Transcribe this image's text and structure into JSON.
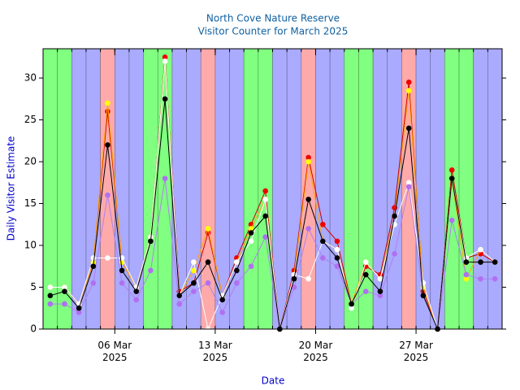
{
  "chart_data": {
    "type": "line",
    "title": "North Cove Nature Reserve",
    "subtitle": "Visitor Counter for March 2025",
    "title_color": "#1060a0",
    "xlabel": "Date",
    "ylabel": "Daily Visitor Estimate",
    "label_color": "#0000cc",
    "x": [
      "2025-03-01",
      "2025-03-02",
      "2025-03-03",
      "2025-03-04",
      "2025-03-05",
      "2025-03-06",
      "2025-03-07",
      "2025-03-08",
      "2025-03-09",
      "2025-03-10",
      "2025-03-11",
      "2025-03-12",
      "2025-03-13",
      "2025-03-14",
      "2025-03-15",
      "2025-03-16",
      "2025-03-17",
      "2025-03-18",
      "2025-03-19",
      "2025-03-20",
      "2025-03-21",
      "2025-03-22",
      "2025-03-23",
      "2025-03-24",
      "2025-03-25",
      "2025-03-26",
      "2025-03-27",
      "2025-03-28",
      "2025-03-29",
      "2025-03-30",
      "2025-03-31",
      "2025-04-01"
    ],
    "day_colors": [
      "#80ff80",
      "#80ff80",
      "#aaaaff",
      "#aaaaff",
      "#ffaaaa",
      "#aaaaff",
      "#aaaaff",
      "#80ff80",
      "#80ff80",
      "#aaaaff",
      "#aaaaff",
      "#ffaaaa",
      "#aaaaff",
      "#aaaaff",
      "#80ff80",
      "#80ff80",
      "#aaaaff",
      "#aaaaff",
      "#ffaaaa",
      "#aaaaff",
      "#aaaaff",
      "#80ff80",
      "#80ff80",
      "#aaaaff",
      "#aaaaff",
      "#ffaaaa",
      "#aaaaff",
      "#aaaaff",
      "#80ff80",
      "#80ff80",
      "#aaaaff",
      "#aaaaff"
    ],
    "xlim": [
      "2025-03-01",
      "2025-04-02"
    ],
    "xticks": [
      {
        "value": "2025-03-06",
        "label": "06 Mar\n2025"
      },
      {
        "value": "2025-03-13",
        "label": "13 Mar\n2025"
      },
      {
        "value": "2025-03-20",
        "label": "20 Mar\n2025"
      },
      {
        "value": "2025-03-27",
        "label": "27 Mar\n2025"
      }
    ],
    "ylim": [
      0,
      33.5
    ],
    "yticks": [
      0,
      5,
      10,
      15,
      20,
      25,
      30
    ],
    "series": [
      {
        "color": "#cc0000",
        "marker_color": "#ee0000",
        "values": [
          5,
          5,
          3,
          8,
          26,
          8,
          5,
          11,
          32.5,
          4.5,
          5.5,
          11.5,
          4,
          8.5,
          12.5,
          16.5,
          0,
          7,
          20.5,
          12.5,
          10.5,
          3,
          7.5,
          6.5,
          14.5,
          29.5,
          4.5,
          0,
          19,
          8.5,
          9,
          8
        ]
      },
      {
        "color": "#ffa500",
        "marker_color": "#ffff00",
        "values": [
          5,
          5,
          3,
          8,
          27,
          8,
          5,
          11,
          32,
          4,
          7,
          12,
          4,
          8,
          12,
          15.5,
          0,
          6.5,
          20,
          10.5,
          9.5,
          3,
          8,
          6,
          13.5,
          28.5,
          5,
          0,
          18,
          6,
          9.5,
          8
        ]
      },
      {
        "color": "#ffffff",
        "marker_color": "#ffffff",
        "values": [
          5,
          5,
          3,
          8.5,
          8.5,
          8.5,
          5,
          11,
          32,
          4,
          8,
          0,
          4,
          8,
          10.5,
          15.5,
          0,
          6.5,
          6,
          10.5,
          9.5,
          2.5,
          8,
          6,
          12.5,
          17.5,
          5.5,
          0,
          18,
          8.5,
          9.5,
          8
        ]
      },
      {
        "color": "#b080f0",
        "marker_color": "#b070f0",
        "values": [
          3,
          3,
          2,
          5.5,
          16,
          5.5,
          3.5,
          7,
          18,
          3,
          4.5,
          5.5,
          2,
          5.5,
          7.5,
          11,
          0,
          5,
          12,
          8.5,
          7.5,
          3,
          4.5,
          4,
          9,
          17,
          4,
          0,
          13,
          6.5,
          6,
          6
        ]
      },
      {
        "color": "#000000",
        "marker_color": "#000000",
        "values": [
          4,
          4.5,
          2.5,
          7.5,
          22,
          7,
          4.5,
          10.5,
          27.5,
          4,
          5.5,
          8,
          3.5,
          7,
          11.5,
          13.5,
          0,
          6,
          15.5,
          10.5,
          8.5,
          3,
          6.5,
          4.5,
          13.5,
          24,
          4,
          0,
          18,
          8,
          8,
          8
        ]
      }
    ]
  }
}
